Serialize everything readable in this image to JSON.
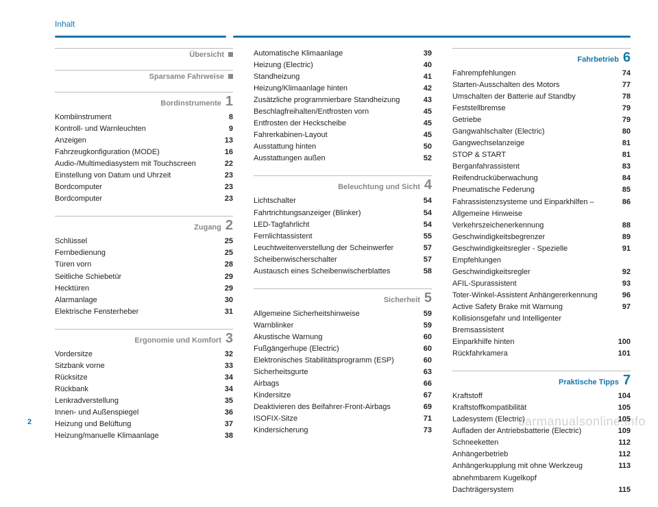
{
  "header": {
    "title": "Inhalt"
  },
  "page_number": "2",
  "watermark": "carmanualsonline.info",
  "columns": [
    {
      "sections": [
        {
          "title": "Übersicht",
          "marker": "square",
          "rows": []
        },
        {
          "title": "Sparsame Fahrweise",
          "marker": "square",
          "rows": []
        },
        {
          "title": "Bordinstrumente",
          "num": "1",
          "rows": [
            {
              "label": "Kombiinstrument",
              "pg": "8"
            },
            {
              "label": "Kontroll- und Warnleuchten",
              "pg": "9"
            },
            {
              "label": "Anzeigen",
              "pg": "13"
            },
            {
              "label": "Fahrzeugkonfiguration (MODE)",
              "pg": "16"
            },
            {
              "label": "Audio-/Multimediasystem mit Touchscreen",
              "pg": "22"
            },
            {
              "label": "Einstellung von Datum und Uhrzeit",
              "pg": "23"
            },
            {
              "label": "Bordcomputer",
              "pg": "23"
            },
            {
              "label": "Bordcomputer",
              "pg": "23"
            }
          ]
        },
        {
          "title": "Zugang",
          "num": "2",
          "rows": [
            {
              "label": "Schlüssel",
              "pg": "25"
            },
            {
              "label": "Fernbedienung",
              "pg": "25"
            },
            {
              "label": "Türen vorn",
              "pg": "28"
            },
            {
              "label": "Seitliche Schiebetür",
              "pg": "29"
            },
            {
              "label": "Hecktüren",
              "pg": "29"
            },
            {
              "label": "Alarmanlage",
              "pg": "30"
            },
            {
              "label": "Elektrische Fensterheber",
              "pg": "31"
            }
          ]
        },
        {
          "title": "Ergonomie und Komfort",
          "num": "3",
          "rows": [
            {
              "label": "Vordersitze",
              "pg": "32"
            },
            {
              "label": "Sitzbank vorne",
              "pg": "33"
            },
            {
              "label": "Rücksitze",
              "pg": "34"
            },
            {
              "label": "Rückbank",
              "pg": "34"
            },
            {
              "label": "Lenkradverstellung",
              "pg": "35"
            },
            {
              "label": "Innen- und Außenspiegel",
              "pg": "36"
            },
            {
              "label": "Heizung und Belüftung",
              "pg": "37"
            },
            {
              "label": "Heizung/manuelle Klimaanlage",
              "pg": "38"
            }
          ]
        }
      ]
    },
    {
      "sections": [
        {
          "continuation": true,
          "rows": [
            {
              "label": "Automatische Klimaanlage",
              "pg": "39"
            },
            {
              "label": "Heizung (Electric)",
              "pg": "40"
            },
            {
              "label": "Standheizung",
              "pg": "41"
            },
            {
              "label": "Heizung/Klimaanlage hinten",
              "pg": "42"
            },
            {
              "label": "Zusätzliche programmierbare Standheizung",
              "pg": "43"
            },
            {
              "label": "Beschlagfreihalten/Entfrosten vorn",
              "pg": "45"
            },
            {
              "label": "Entfrosten der Heckscheibe",
              "pg": "45"
            },
            {
              "label": "Fahrerkabinen-Layout",
              "pg": "45"
            },
            {
              "label": "Ausstattung hinten",
              "pg": "50"
            },
            {
              "label": "Ausstattungen außen",
              "pg": "52"
            }
          ]
        },
        {
          "title": "Beleuchtung und Sicht",
          "num": "4",
          "rows": [
            {
              "label": "Lichtschalter",
              "pg": "54"
            },
            {
              "label": "Fahrtrichtungsanzeiger (Blinker)",
              "pg": "54"
            },
            {
              "label": "LED-Tagfahrlicht",
              "pg": "54"
            },
            {
              "label": "Fernlichtassistent",
              "pg": "55"
            },
            {
              "label": "Leuchtweitenverstellung der Scheinwerfer",
              "pg": "57"
            },
            {
              "label": "Scheibenwischerschalter",
              "pg": "57"
            },
            {
              "label": "Austausch eines Scheibenwischerblattes",
              "pg": "58"
            }
          ]
        },
        {
          "title": "Sicherheit",
          "num": "5",
          "rows": [
            {
              "label": "Allgemeine Sicherheitshinweise",
              "pg": "59"
            },
            {
              "label": "Warnblinker",
              "pg": "59"
            },
            {
              "label": "Akustische Warnung",
              "pg": "60"
            },
            {
              "label": "Fußgängerhupe (Electric)",
              "pg": "60"
            },
            {
              "label": "Elektronisches Stabilitätsprogramm (ESP)",
              "pg": "60"
            },
            {
              "label": "Sicherheitsgurte",
              "pg": "63"
            },
            {
              "label": "Airbags",
              "pg": "66"
            },
            {
              "label": "Kindersitze",
              "pg": "67"
            },
            {
              "label": "Deaktivieren des Beifahrer-Front-Airbags",
              "pg": "69"
            },
            {
              "label": "ISOFIX-Sitze",
              "pg": "71"
            },
            {
              "label": "Kindersicherung",
              "pg": "73"
            }
          ]
        }
      ]
    },
    {
      "sections": [
        {
          "title": "Fahrbetrieb",
          "num": "6",
          "accent": "blue",
          "rows": [
            {
              "label": "Fahrempfehlungen",
              "pg": "74"
            },
            {
              "label": "Starten-Ausschalten des Motors",
              "pg": "77"
            },
            {
              "label": "Umschalten der Batterie auf Standby",
              "pg": "78"
            },
            {
              "label": "Feststellbremse",
              "pg": "79"
            },
            {
              "label": "Getriebe",
              "pg": "79"
            },
            {
              "label": "Gangwahlschalter (Electric)",
              "pg": "80"
            },
            {
              "label": "Gangwechselanzeige",
              "pg": "81"
            },
            {
              "label": "STOP & START",
              "pg": "81"
            },
            {
              "label": "Berganfahrassistent",
              "pg": "83"
            },
            {
              "label": "Reifendrucküberwachung",
              "pg": "84"
            },
            {
              "label": "Pneumatische Federung",
              "pg": "85"
            },
            {
              "label": "Fahrassistenzsysteme und Einparkhilfen – Allgemeine Hinweise",
              "pg": "86"
            },
            {
              "label": "Verkehrszeichenerkennung",
              "pg": "88"
            },
            {
              "label": "Geschwindigkeitsbegrenzer",
              "pg": "89"
            },
            {
              "label": "Geschwindigkeitsregler - Spezielle Empfehlungen",
              "pg": "91"
            },
            {
              "label": "Geschwindigkeitsregler",
              "pg": "92"
            },
            {
              "label": "AFIL-Spurassistent",
              "pg": "93"
            },
            {
              "label": "Toter-Winkel-Assistent Anhängererkennung",
              "pg": "96"
            },
            {
              "label": "Active Safety Brake mit Warnung Kollisionsgefahr und Intelligenter Bremsassistent",
              "pg": "97"
            },
            {
              "label": "Einparkhilfe hinten",
              "pg": "100"
            },
            {
              "label": "Rückfahrkamera",
              "pg": "101"
            }
          ]
        },
        {
          "title": "Praktische Tipps",
          "num": "7",
          "accent": "blue",
          "rows": [
            {
              "label": "Kraftstoff",
              "pg": "104"
            },
            {
              "label": "Kraftstoffkompatibilität",
              "pg": "105"
            },
            {
              "label": "Ladesystem (Electric)",
              "pg": "105"
            },
            {
              "label": "Aufladen der Antriebsbatterie (Electric)",
              "pg": "109"
            },
            {
              "label": "Schneeketten",
              "pg": "112"
            },
            {
              "label": "Anhängerbetrieb",
              "pg": "112"
            },
            {
              "label": "Anhängerkupplung mit ohne Werkzeug abnehmbarem Kugelkopf",
              "pg": "113"
            },
            {
              "label": "Dachträgersystem",
              "pg": "115"
            }
          ]
        }
      ]
    }
  ]
}
